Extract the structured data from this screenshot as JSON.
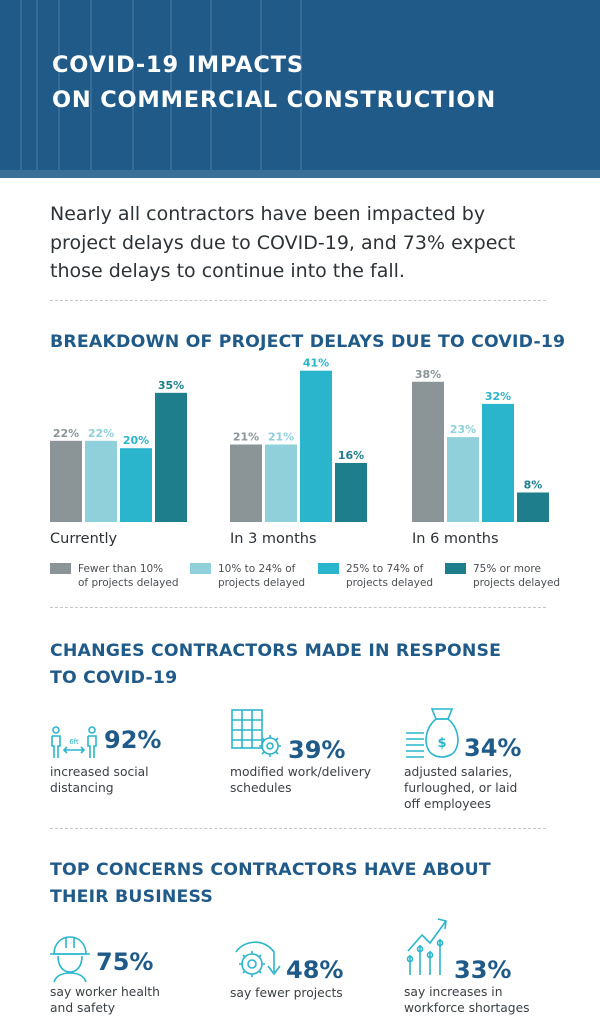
{
  "header": {
    "title_line1": "COVID-19 IMPACTS",
    "title_line2": "ON COMMERCIAL CONSTRUCTION"
  },
  "intro": {
    "line1": "Nearly all contractors have been impacted by",
    "line2": "project delays due to COVID-19, and 73% expect",
    "line3": "those delays to continue into the fall."
  },
  "breakdown": {
    "title": "BREAKDOWN OF PROJECT DELAYS DUE TO COVID-19"
  },
  "chart_data": {
    "type": "bar",
    "title": "BREAKDOWN OF PROJECT DELAYS DUE TO COVID-19",
    "categories": [
      "Currently",
      "In 3 months",
      "In 6 months"
    ],
    "series": [
      {
        "name": "Fewer than 10% of projects delayed",
        "color": "#8b9598",
        "values": [
          22,
          21,
          38
        ],
        "labels": [
          "22%",
          "21%",
          "38%"
        ]
      },
      {
        "name": "10% to 24% of projects delayed",
        "color": "#8fd0db",
        "values": [
          22,
          21,
          23
        ],
        "labels": [
          "22%",
          "21%",
          "23%"
        ]
      },
      {
        "name": "25% to 74% of projects delayed",
        "color": "#2ab5cc",
        "values": [
          20,
          41,
          32
        ],
        "labels": [
          "20%",
          "41%",
          "32%"
        ]
      },
      {
        "name": "75% or more projects delayed",
        "color": "#1f7e8c",
        "values": [
          35,
          16,
          8
        ],
        "labels": [
          "35%",
          "16%",
          "8%"
        ]
      }
    ],
    "ylim": [
      0,
      42
    ],
    "legend_position": "bottom",
    "grid": false
  },
  "legend": {
    "items": [
      {
        "line1": "Fewer than 10%",
        "line2": "of projects delayed",
        "color": "#8b9598"
      },
      {
        "line1": "10% to 24% of",
        "line2": "projects delayed",
        "color": "#8fd0db"
      },
      {
        "line1": "25% to 74% of",
        "line2": "projects delayed",
        "color": "#2ab5cc"
      },
      {
        "line1": "75% or more",
        "line2": "projects delayed",
        "color": "#1f7e8c"
      }
    ]
  },
  "changes": {
    "title_line1": "CHANGES CONTRACTORS MADE IN RESPONSE",
    "title_line2": "TO COVID-19",
    "items": [
      {
        "icon": "social-distancing-icon",
        "icon_text": "6ft",
        "value": "92%",
        "line1": "increased social",
        "line2": "distancing",
        "line3": ""
      },
      {
        "icon": "calendar-gear-icon",
        "value": "39%",
        "line1": "modified work/delivery",
        "line2": "schedules",
        "line3": ""
      },
      {
        "icon": "money-bag-icon",
        "icon_text": "$",
        "value": "34%",
        "line1": "adjusted salaries,",
        "line2": "furloughed, or laid",
        "line3": "off employees"
      }
    ]
  },
  "concerns": {
    "title_line1": "TOP CONCERNS CONTRACTORS HAVE ABOUT",
    "title_line2": "THEIR BUSINESS",
    "items": [
      {
        "icon": "hard-hat-worker-icon",
        "value": "75%",
        "line1": "say worker health",
        "line2": "and safety"
      },
      {
        "icon": "gear-down-arrow-icon",
        "value": "48%",
        "line1": "say fewer projects",
        "line2": ""
      },
      {
        "icon": "workforce-growth-icon",
        "value": "33%",
        "line1": "say increases in",
        "line2": "workforce shortages"
      }
    ]
  },
  "colors": {
    "brand_blue": "#1f5a88",
    "header_bg": "#1f5a88",
    "teal": "#2ab5cc"
  }
}
